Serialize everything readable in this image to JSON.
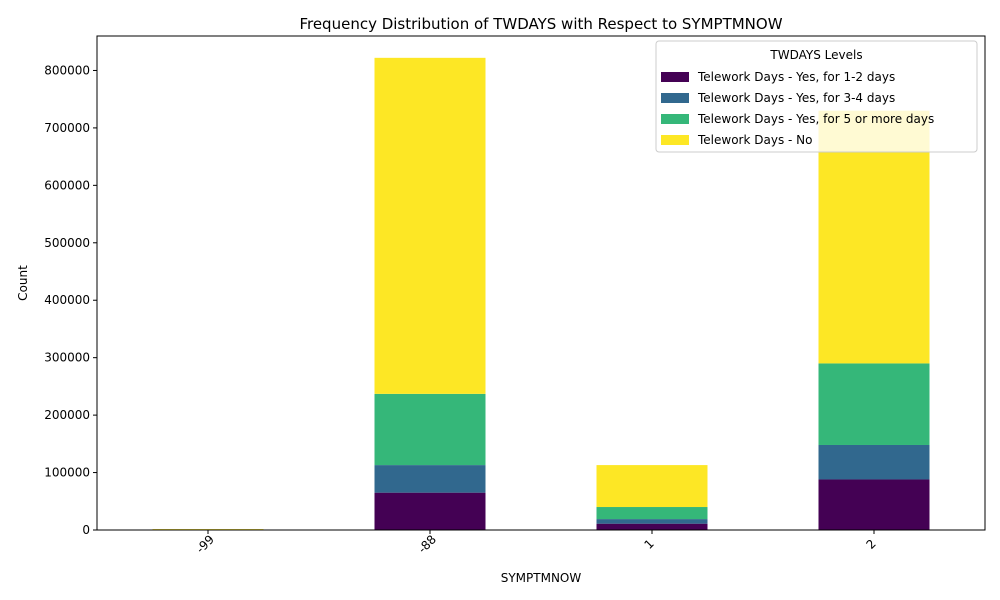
{
  "chart_data": {
    "type": "bar",
    "stacked": true,
    "title": "Frequency Distribution of TWDAYS with Respect to SYMPTMNOW",
    "xlabel": "SYMPTMNOW",
    "ylabel": "Count",
    "categories": [
      "-99",
      "-88",
      "1",
      "2"
    ],
    "ylim": [
      0,
      860000
    ],
    "yticks": [
      0,
      100000,
      200000,
      300000,
      400000,
      500000,
      600000,
      700000,
      800000
    ],
    "grid": false,
    "legend": {
      "title": "TWDAYS Levels",
      "placement": "top-right"
    },
    "series": [
      {
        "name": "Telework Days - Yes, for 1-2 days",
        "color": "#440154",
        "values": [
          100,
          65000,
          11000,
          88000
        ]
      },
      {
        "name": "Telework Days - Yes, for 3-4 days",
        "color": "#31688e",
        "values": [
          100,
          48000,
          8000,
          60000
        ]
      },
      {
        "name": "Telework Days - Yes, for 5 or more days",
        "color": "#35b779",
        "values": [
          200,
          124000,
          21000,
          142000
        ]
      },
      {
        "name": "Telework Days - No",
        "color": "#fde725",
        "values": [
          1200,
          585000,
          73000,
          440000
        ]
      }
    ]
  }
}
